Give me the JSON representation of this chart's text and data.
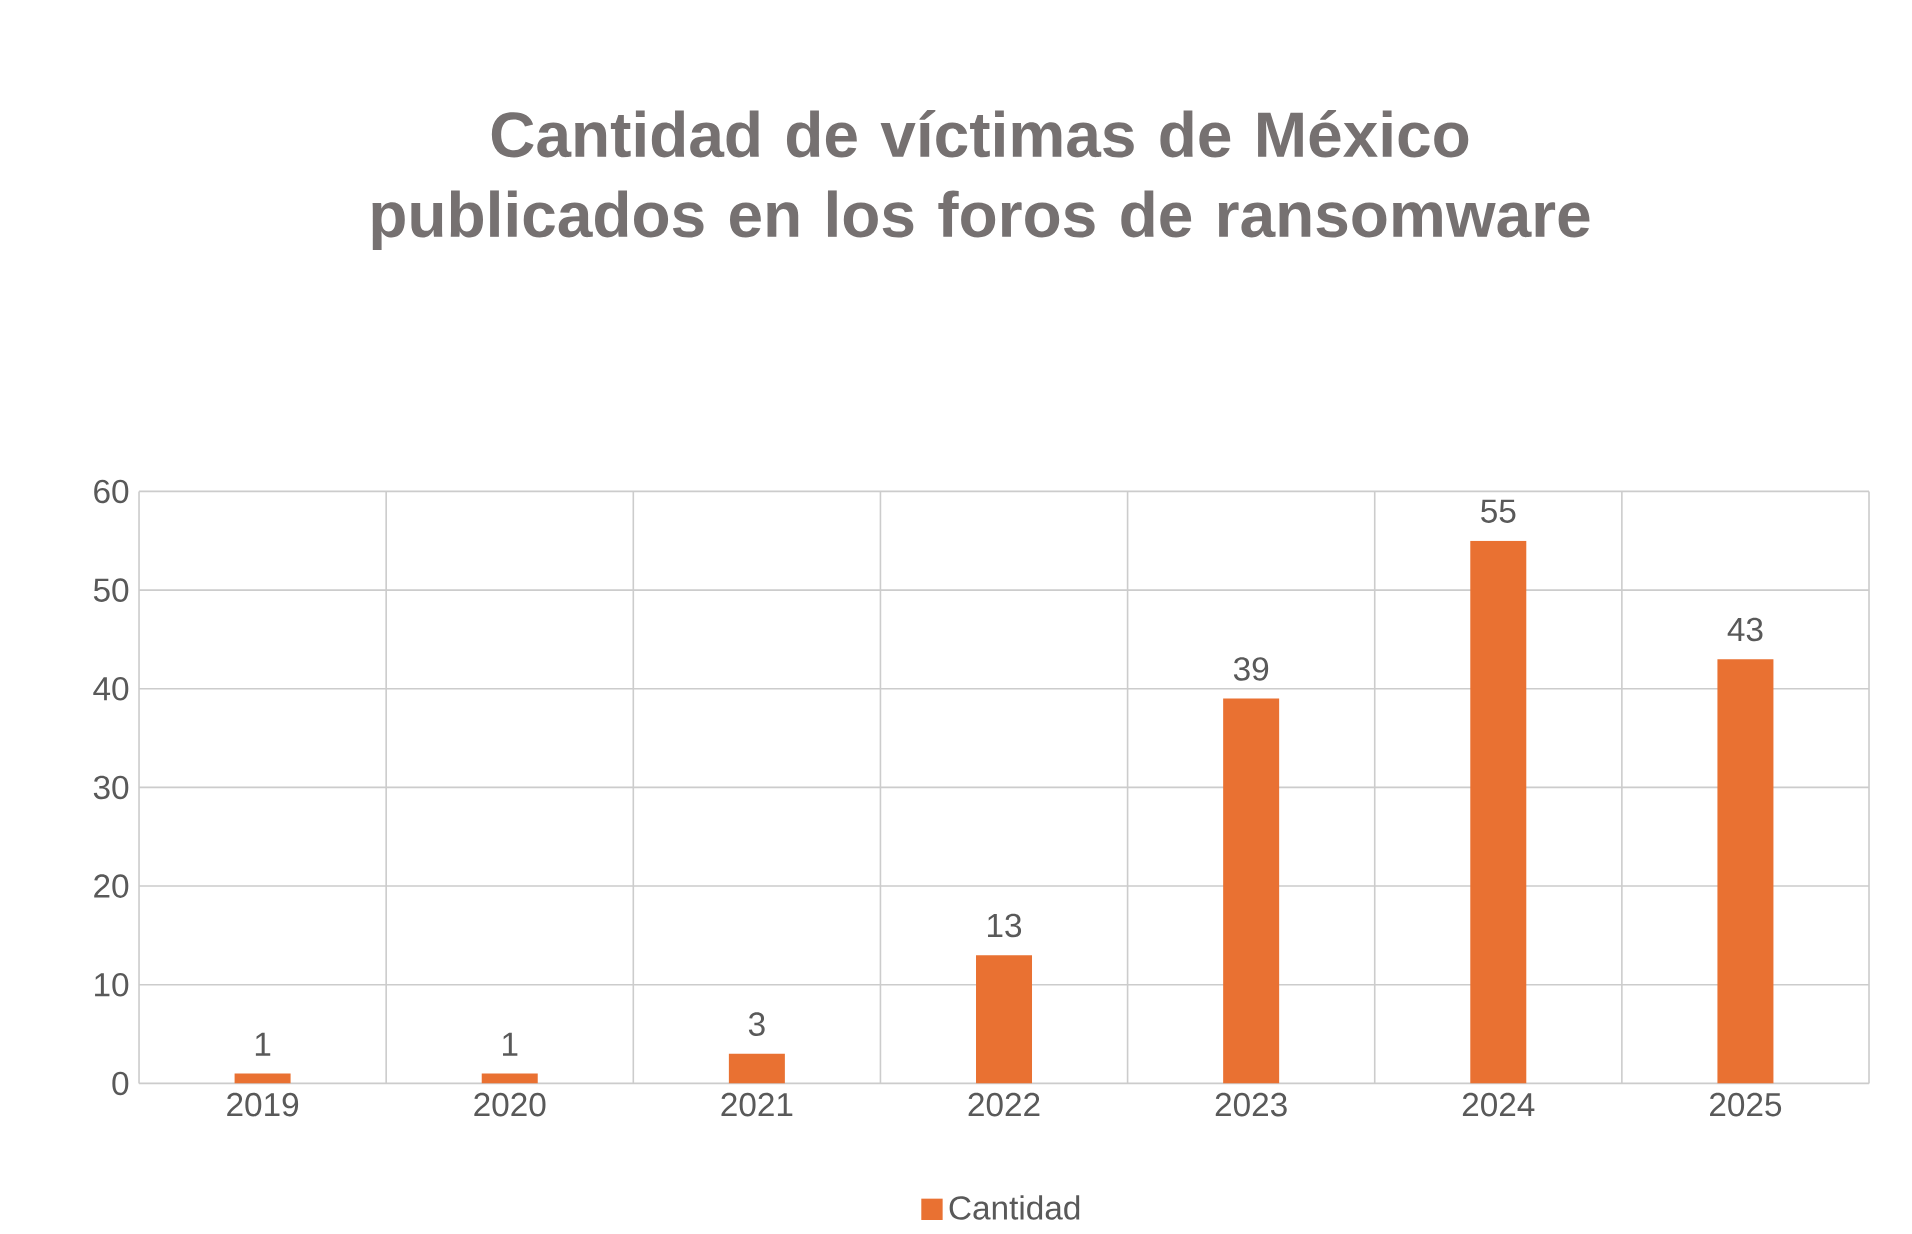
{
  "chart_data": {
    "type": "bar",
    "title": "Cantidad de víctimas de México publicados en los foros de ransomware",
    "categories": [
      "2019",
      "2020",
      "2021",
      "2022",
      "2023",
      "2024",
      "2025"
    ],
    "series": [
      {
        "name": "Cantidad",
        "color": "#e97132",
        "values": [
          1,
          1,
          3,
          13,
          39,
          55,
          43
        ]
      }
    ],
    "ylim": [
      0,
      60
    ],
    "yticks": [
      0,
      10,
      20,
      30,
      40,
      50,
      60
    ],
    "grid": true,
    "legend": "bottom",
    "data_labels": true
  }
}
